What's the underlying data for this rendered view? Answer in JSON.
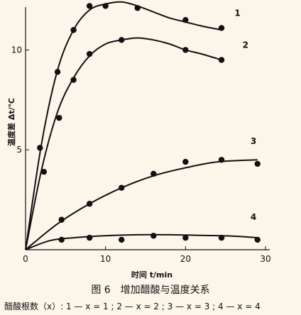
{
  "chart_data": {
    "type": "scatter",
    "xlabel": "时间 t/min",
    "ylabel": "温度差 Δt/℃",
    "xlim": [
      0,
      30
    ],
    "ylim": [
      0,
      12.5
    ],
    "xticks": [
      0,
      10,
      20,
      30
    ],
    "yticks": [
      5,
      10
    ],
    "grid": false,
    "series": [
      {
        "name": "1",
        "points": [
          [
            1.8,
            5.1
          ],
          [
            2.3,
            3.9
          ],
          [
            4.0,
            8.9
          ],
          [
            6.0,
            11.0
          ],
          [
            8.0,
            12.2
          ],
          [
            10.0,
            12.2
          ],
          [
            14.0,
            12.1
          ],
          [
            20.0,
            11.5
          ],
          [
            24.5,
            11.1
          ]
        ],
        "curve": [
          [
            0,
            0
          ],
          [
            2,
            5.3
          ],
          [
            4,
            9.0
          ],
          [
            6,
            11.0
          ],
          [
            8,
            12.0
          ],
          [
            10,
            12.3
          ],
          [
            12,
            12.4
          ],
          [
            14,
            12.2
          ],
          [
            16,
            11.9
          ],
          [
            18,
            11.6
          ],
          [
            20,
            11.4
          ],
          [
            22,
            11.2
          ],
          [
            24.5,
            11.0
          ]
        ]
      },
      {
        "name": "2",
        "points": [
          [
            4.2,
            6.6
          ],
          [
            6.0,
            8.5
          ],
          [
            8.0,
            9.8
          ],
          [
            12.0,
            10.5
          ],
          [
            20.0,
            10.0
          ],
          [
            24.5,
            9.5
          ]
        ],
        "curve": [
          [
            0,
            0
          ],
          [
            2,
            4.0
          ],
          [
            4,
            6.9
          ],
          [
            6,
            8.6
          ],
          [
            8,
            9.7
          ],
          [
            10,
            10.3
          ],
          [
            12,
            10.5
          ],
          [
            14,
            10.6
          ],
          [
            16,
            10.5
          ],
          [
            18,
            10.3
          ],
          [
            20,
            10.0
          ],
          [
            22,
            9.8
          ],
          [
            24.5,
            9.5
          ]
        ]
      },
      {
        "name": "3",
        "points": [
          [
            4.5,
            1.5
          ],
          [
            8.0,
            2.3
          ],
          [
            12.0,
            3.1
          ],
          [
            16.0,
            3.8
          ],
          [
            20.0,
            4.4
          ],
          [
            24.5,
            4.5
          ],
          [
            29.0,
            4.3
          ]
        ],
        "curve": [
          [
            0,
            0
          ],
          [
            4,
            1.3
          ],
          [
            8,
            2.3
          ],
          [
            12,
            3.1
          ],
          [
            16,
            3.7
          ],
          [
            20,
            4.1
          ],
          [
            24,
            4.4
          ],
          [
            29,
            4.5
          ]
        ]
      },
      {
        "name": "4",
        "points": [
          [
            4.5,
            0.5
          ],
          [
            8.0,
            0.6
          ],
          [
            12.0,
            0.5
          ],
          [
            16.0,
            0.7
          ],
          [
            20.0,
            0.6
          ],
          [
            24.5,
            0.6
          ],
          [
            29.0,
            0.5
          ]
        ],
        "curve": [
          [
            0,
            0
          ],
          [
            3,
            0.45
          ],
          [
            6,
            0.6
          ],
          [
            10,
            0.7
          ],
          [
            14,
            0.75
          ],
          [
            18,
            0.75
          ],
          [
            22,
            0.72
          ],
          [
            26,
            0.68
          ],
          [
            29,
            0.6
          ]
        ]
      }
    ]
  },
  "caption": "图 6　增加醋酸与温度关系",
  "note": "醋酸根数（x）: 1 — x = 1 ; 2 — x = 2 ; 3 — x = 3 ; 4 — x = 4"
}
